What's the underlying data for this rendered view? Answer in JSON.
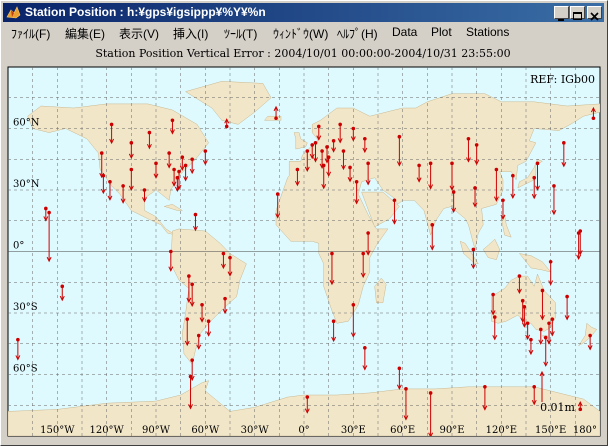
{
  "window": {
    "title": "Station Position : h:¥gps¥igsippp¥%Y¥%n"
  },
  "menu": [
    "ﾌｧｲﾙ(F)",
    "編集(E)",
    "表示(V)",
    "挿入(I)",
    "ﾂｰﾙ(T)",
    "ｳｨﾝﾄﾞｳ(W)",
    "ﾍﾙﾌﾟ(H)",
    "Data",
    "Plot",
    "Stations"
  ],
  "colors": {
    "ocean": "#dffaff",
    "land": "#f1e6c8",
    "arrow": "#cc0000",
    "titlebar": "#0a246a"
  },
  "chart_data": {
    "type": "map-vector",
    "title": "Station Position Vertical Error : 2004/10/01 00:00:00-2004/10/31 23:55:00",
    "reference_label": "REF: IGb00",
    "scale_label": "0.01m",
    "xlim": [
      -180,
      180
    ],
    "ylim": [
      -90,
      90
    ],
    "xticks": [
      "150°W",
      "120°W",
      "90°W",
      "60°W",
      "30°W",
      "0°",
      "30°E",
      "60°E",
      "90°E",
      "120°E",
      "150°E",
      "180°"
    ],
    "yticks": [
      "60°N",
      "30°N",
      "0°",
      "30°S",
      "60°S"
    ],
    "grid": true,
    "icon_names": [
      "matlab-figure-icon",
      "minimize-icon",
      "maximize-icon",
      "close-icon"
    ],
    "stations": [
      {
        "lon": -155,
        "lat": 19,
        "dv": -0.0162
      },
      {
        "lon": -157,
        "lat": 21,
        "dv": -0.004
      },
      {
        "lon": -147,
        "lat": -17,
        "dv": -0.0046
      },
      {
        "lon": -174,
        "lat": -43,
        "dv": -0.0066
      },
      {
        "lon": -123,
        "lat": 48,
        "dv": -0.008
      },
      {
        "lon": -122,
        "lat": 37,
        "dv": -0.0058
      },
      {
        "lon": -118,
        "lat": 34,
        "dv": -0.006
      },
      {
        "lon": -110,
        "lat": 32,
        "dv": -0.0056
      },
      {
        "lon": -117,
        "lat": 62,
        "dv": -0.0062
      },
      {
        "lon": -105,
        "lat": 40,
        "dv": -0.0068
      },
      {
        "lon": -105,
        "lat": 53,
        "dv": -0.005
      },
      {
        "lon": -94,
        "lat": 58,
        "dv": -0.0052
      },
      {
        "lon": -97,
        "lat": 30,
        "dv": -0.0038
      },
      {
        "lon": -90,
        "lat": 43,
        "dv": -0.0048
      },
      {
        "lon": -80,
        "lat": 64,
        "dv": -0.0044
      },
      {
        "lon": -82,
        "lat": 48,
        "dv": -0.0048
      },
      {
        "lon": -79,
        "lat": 40,
        "dv": -0.0054
      },
      {
        "lon": -76,
        "lat": 39,
        "dv": -0.0058
      },
      {
        "lon": -77,
        "lat": 36,
        "dv": -0.0044
      },
      {
        "lon": -72,
        "lat": 42,
        "dv": -0.005
      },
      {
        "lon": -74,
        "lat": 46,
        "dv": -0.0042
      },
      {
        "lon": -68,
        "lat": 45,
        "dv": -0.0046
      },
      {
        "lon": -66,
        "lat": 18,
        "dv": -0.0052
      },
      {
        "lon": -60,
        "lat": 49,
        "dv": -0.0044
      },
      {
        "lon": -47,
        "lat": 61,
        "dv": 0.0024
      },
      {
        "lon": -17,
        "lat": 65,
        "dv": 0.0038
      },
      {
        "lon": -81,
        "lat": 0,
        "dv": -0.0064
      },
      {
        "lon": -70,
        "lat": -12,
        "dv": -0.0086
      },
      {
        "lon": -68,
        "lat": -16,
        "dv": -0.0072
      },
      {
        "lon": -49,
        "lat": -1,
        "dv": -0.0048
      },
      {
        "lon": -48,
        "lat": -23,
        "dv": -0.0048
      },
      {
        "lon": -45,
        "lat": -3,
        "dv": -0.006
      },
      {
        "lon": -71,
        "lat": -33,
        "dv": -0.0086
      },
      {
        "lon": -62,
        "lat": -26,
        "dv": -0.0056
      },
      {
        "lon": -58,
        "lat": -34,
        "dv": -0.0048
      },
      {
        "lon": -68,
        "lat": -53,
        "dv": -0.0066
      },
      {
        "lon": -64,
        "lat": -41,
        "dv": -0.0044
      },
      {
        "lon": -69,
        "lat": -61,
        "dv": -0.0106
      },
      {
        "lon": -16,
        "lat": 28,
        "dv": -0.0078
      },
      {
        "lon": -4,
        "lat": 40,
        "dv": -0.0052
      },
      {
        "lon": 2,
        "lat": 49,
        "dv": -0.0066
      },
      {
        "lon": 7,
        "lat": 53,
        "dv": -0.0062
      },
      {
        "lon": 5,
        "lat": 52,
        "dv": -0.0044
      },
      {
        "lon": 11,
        "lat": 49,
        "dv": -0.0056
      },
      {
        "lon": 12,
        "lat": 42,
        "dv": -0.0076
      },
      {
        "lon": 14,
        "lat": 51,
        "dv": -0.0052
      },
      {
        "lon": 18,
        "lat": 54,
        "dv": -0.0036
      },
      {
        "lon": 15,
        "lat": 46,
        "dv": -0.0062
      },
      {
        "lon": 22,
        "lat": 62,
        "dv": -0.006
      },
      {
        "lon": 9,
        "lat": 61,
        "dv": -0.0044
      },
      {
        "lon": 24,
        "lat": 49,
        "dv": -0.006
      },
      {
        "lon": 30,
        "lat": 60,
        "dv": -0.004
      },
      {
        "lon": 32,
        "lat": 34,
        "dv": -0.0072
      },
      {
        "lon": 39,
        "lat": 43,
        "dv": -0.007
      },
      {
        "lon": 37,
        "lat": 55,
        "dv": -0.0044
      },
      {
        "lon": 28,
        "lat": 41,
        "dv": -0.0046
      },
      {
        "lon": 17,
        "lat": -1,
        "dv": -0.0102
      },
      {
        "lon": 39,
        "lat": 9,
        "dv": -0.0072
      },
      {
        "lon": 36,
        "lat": -1,
        "dv": -0.0078
      },
      {
        "lon": 30,
        "lat": -26,
        "dv": -0.0106
      },
      {
        "lon": 18,
        "lat": -34,
        "dv": -0.0066
      },
      {
        "lon": 55,
        "lat": 25,
        "dv": -0.0078
      },
      {
        "lon": 58,
        "lat": 56,
        "dv": -0.0096
      },
      {
        "lon": 70,
        "lat": 42,
        "dv": -0.0054
      },
      {
        "lon": 77,
        "lat": 43,
        "dv": -0.0084
      },
      {
        "lon": 78,
        "lat": 13,
        "dv": -0.0082
      },
      {
        "lon": 90,
        "lat": 43,
        "dv": -0.0088
      },
      {
        "lon": 100,
        "lat": 55,
        "dv": -0.0076
      },
      {
        "lon": 91,
        "lat": 29,
        "dv": -0.0066
      },
      {
        "lon": 103,
        "lat": 1,
        "dv": -0.0062
      },
      {
        "lon": 121,
        "lat": 25,
        "dv": -0.0062
      },
      {
        "lon": 104,
        "lat": 31,
        "dv": -0.0062
      },
      {
        "lon": 105,
        "lat": 52,
        "dv": -0.0064
      },
      {
        "lon": 117,
        "lat": 40,
        "dv": -0.0104
      },
      {
        "lon": 127,
        "lat": 37,
        "dv": -0.0074
      },
      {
        "lon": 140,
        "lat": 36,
        "dv": -0.0068
      },
      {
        "lon": 142,
        "lat": 43,
        "dv": -0.0088
      },
      {
        "lon": 152,
        "lat": 32,
        "dv": -0.0094
      },
      {
        "lon": 158,
        "lat": 53,
        "dv": -0.0078
      },
      {
        "lon": 150,
        "lat": -5,
        "dv": -0.0076
      },
      {
        "lon": 167,
        "lat": 9,
        "dv": -0.0086
      },
      {
        "lon": 168,
        "lat": 10,
        "dv": -0.0078
      },
      {
        "lon": 176,
        "lat": 65,
        "dv": 0.0034
      },
      {
        "lon": 115,
        "lat": -21,
        "dv": -0.0066
      },
      {
        "lon": 116,
        "lat": -32,
        "dv": -0.0074
      },
      {
        "lon": 131,
        "lat": -12,
        "dv": -0.0056
      },
      {
        "lon": 133,
        "lat": -24,
        "dv": -0.007
      },
      {
        "lon": 134,
        "lat": -27,
        "dv": -0.0066
      },
      {
        "lon": 136,
        "lat": -35,
        "dv": -0.0052
      },
      {
        "lon": 138,
        "lat": -43,
        "dv": -0.0048
      },
      {
        "lon": 144,
        "lat": -38,
        "dv": -0.0048
      },
      {
        "lon": 145,
        "lat": -19,
        "dv": -0.0096
      },
      {
        "lon": 147,
        "lat": -42,
        "dv": -0.0094
      },
      {
        "lon": 149,
        "lat": -35,
        "dv": -0.0068
      },
      {
        "lon": 151,
        "lat": -33,
        "dv": -0.0054
      },
      {
        "lon": 160,
        "lat": -22,
        "dv": -0.0076
      },
      {
        "lon": 174,
        "lat": -41,
        "dv": -0.0046
      },
      {
        "lon": 168,
        "lat": -77,
        "dv": 0.0024
      },
      {
        "lon": 62,
        "lat": -67,
        "dv": -0.0102
      },
      {
        "lon": 77,
        "lat": -69,
        "dv": -0.0146
      },
      {
        "lon": 110,
        "lat": -66,
        "dv": -0.0076
      },
      {
        "lon": 58,
        "lat": -57,
        "dv": -0.0068
      },
      {
        "lon": 2,
        "lat": -71,
        "dv": -0.0052
      },
      {
        "lon": 140,
        "lat": -66,
        "dv": -0.0058
      },
      {
        "lon": 37,
        "lat": -47,
        "dv": -0.0072
      }
    ]
  }
}
